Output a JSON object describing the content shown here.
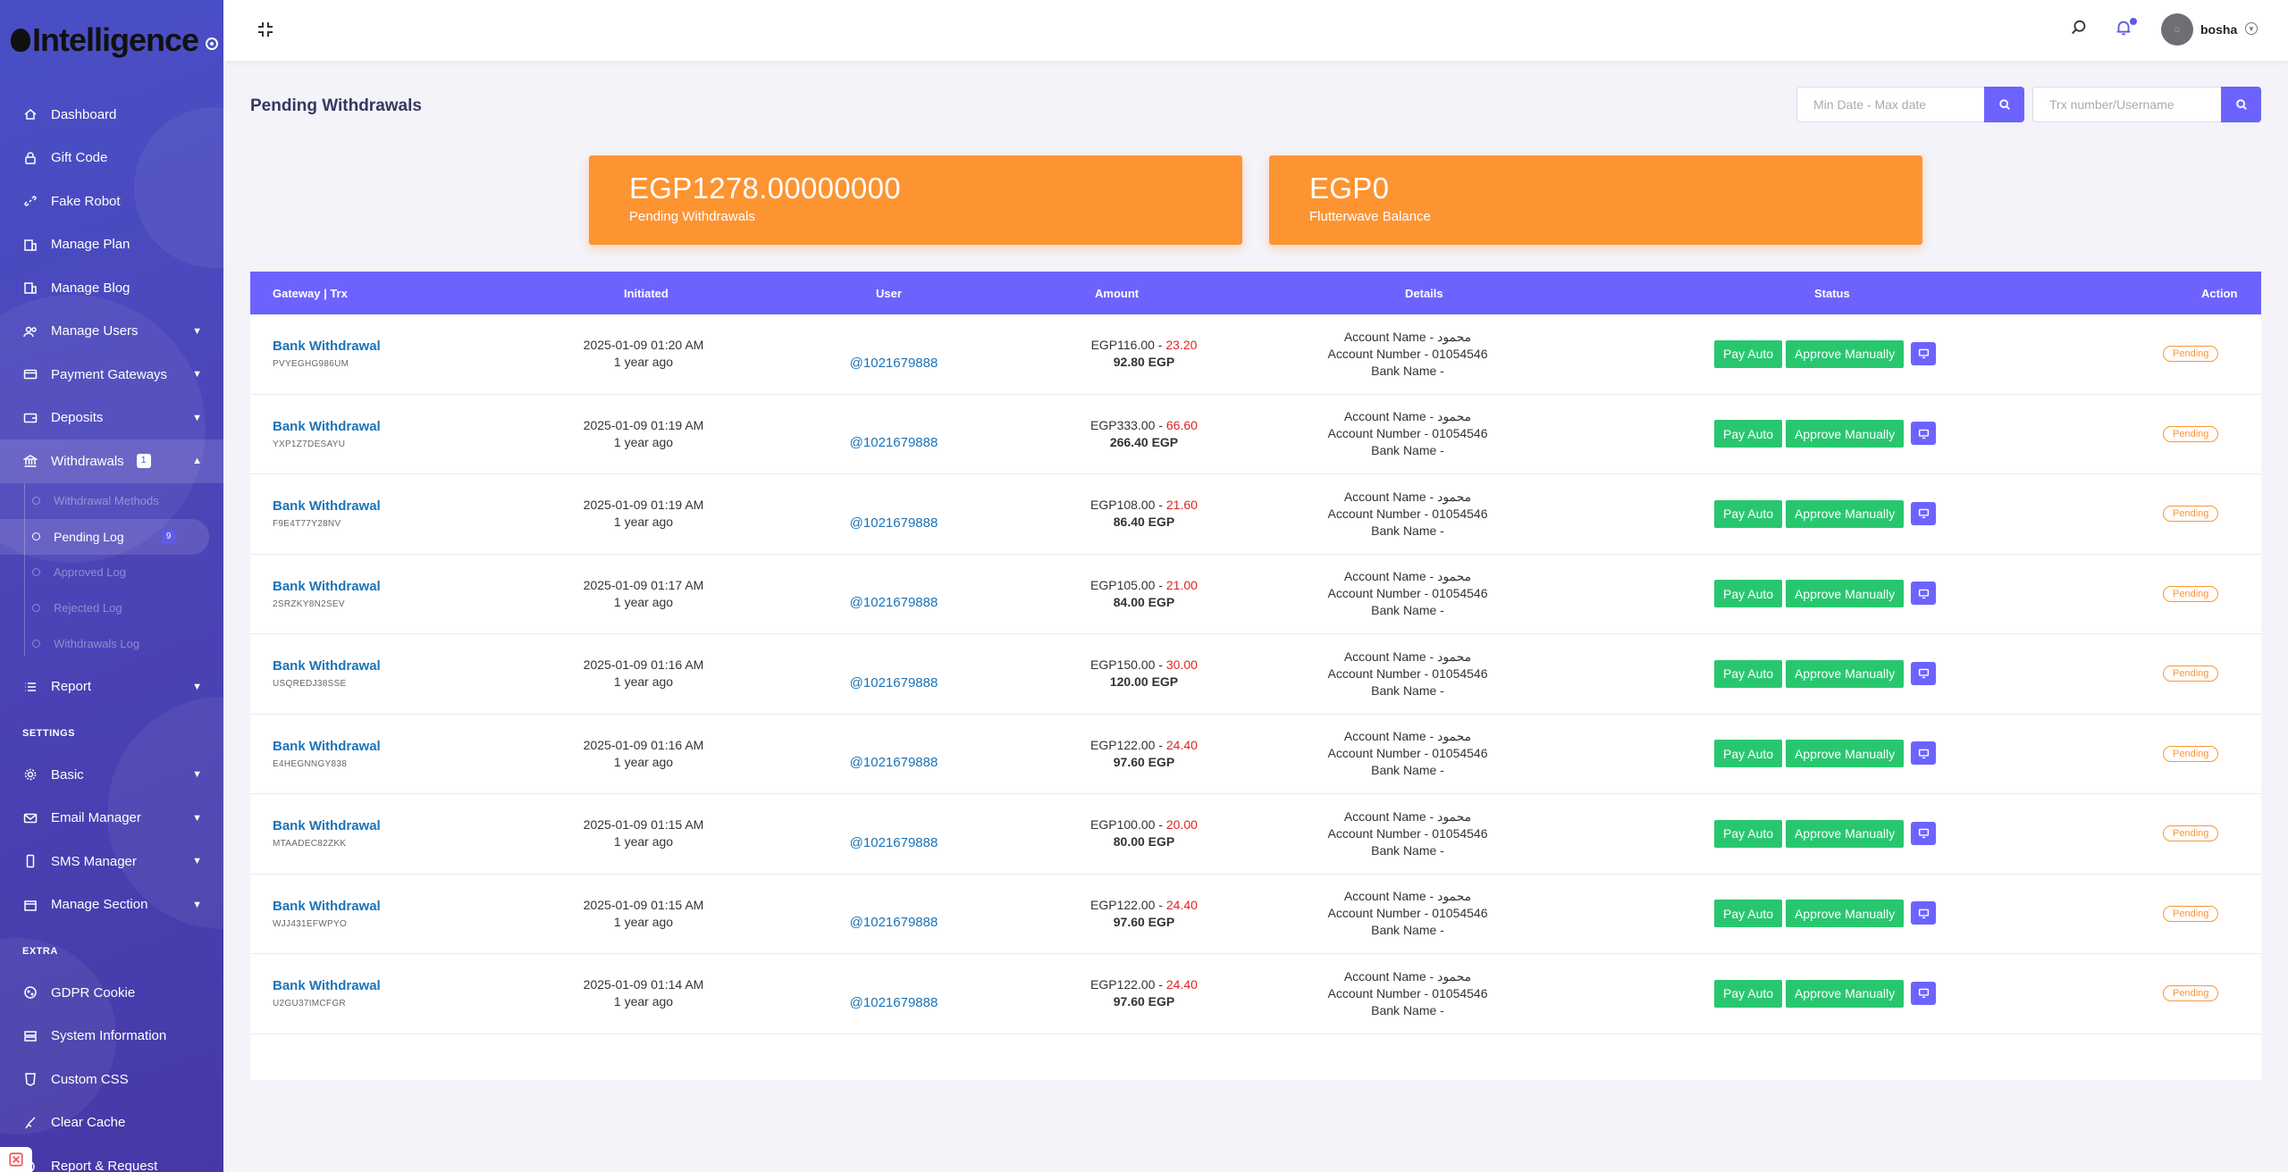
{
  "brand": {
    "name": "Intelligence"
  },
  "sidebar": {
    "items": [
      {
        "label": "Dashboard",
        "icon": "home-icon"
      },
      {
        "label": "Gift Code",
        "icon": "lock-icon"
      },
      {
        "label": "Fake Robot",
        "icon": "link-icon"
      },
      {
        "label": "Manage Plan",
        "icon": "building-icon"
      },
      {
        "label": "Manage Blog",
        "icon": "building-icon"
      },
      {
        "label": "Manage Users",
        "icon": "users-icon",
        "expandable": true
      },
      {
        "label": "Payment Gateways",
        "icon": "credit-card-icon",
        "expandable": true
      },
      {
        "label": "Deposits",
        "icon": "wallet-icon",
        "expandable": true
      },
      {
        "label": "Withdrawals",
        "icon": "bank-icon",
        "badge": "1",
        "expanded": true
      }
    ],
    "withdrawal_submenu": [
      {
        "label": "Withdrawal Methods"
      },
      {
        "label": "Pending Log",
        "badge": "9",
        "active": true
      },
      {
        "label": "Approved Log"
      },
      {
        "label": "Rejected Log"
      },
      {
        "label": "Withdrawals Log"
      }
    ],
    "report": {
      "label": "Report"
    },
    "settings_heading": "SETTINGS",
    "settings_items": [
      {
        "label": "Basic"
      },
      {
        "label": "Email Manager"
      },
      {
        "label": "SMS Manager"
      },
      {
        "label": "Manage Section"
      }
    ],
    "extra_heading": "EXTRA",
    "extra_items": [
      {
        "label": "GDPR Cookie"
      },
      {
        "label": "System Information"
      },
      {
        "label": "Custom CSS"
      },
      {
        "label": "Clear Cache"
      },
      {
        "label": "Report & Request"
      }
    ]
  },
  "topbar": {
    "username": "bosha"
  },
  "page": {
    "title": "Pending Withdrawals",
    "date_search_placeholder": "Min Date - Max date",
    "trx_search_placeholder": "Trx number/Username"
  },
  "cards": [
    {
      "amount": "EGP1278.00000000",
      "label": "Pending Withdrawals"
    },
    {
      "amount": "EGP0",
      "label": "Flutterwave Balance"
    }
  ],
  "table": {
    "headers": [
      "Gateway | Trx",
      "Initiated",
      "User",
      "Amount",
      "Details",
      "Status",
      "Action"
    ],
    "rows": [
      {
        "gateway": "Bank Withdrawal",
        "trx": "PVYEGHG986UM",
        "date": "2025-01-09 01:20 AM",
        "ago": "1 year ago",
        "user": "@1021679888",
        "amount": "EGP116.00",
        "charge": "23.20",
        "net": "92.80 EGP",
        "account_name": "Account Name - محمود",
        "account_number": "Account Number - 01054546",
        "bank_name": "Bank Name -",
        "status": "Pending"
      },
      {
        "gateway": "Bank Withdrawal",
        "trx": "YXP1Z7DESAYU",
        "date": "2025-01-09 01:19 AM",
        "ago": "1 year ago",
        "user": "@1021679888",
        "amount": "EGP333.00",
        "charge": "66.60",
        "net": "266.40 EGP",
        "account_name": "Account Name - محمود",
        "account_number": "Account Number - 01054546",
        "bank_name": "Bank Name -",
        "status": "Pending"
      },
      {
        "gateway": "Bank Withdrawal",
        "trx": "F9E4T77Y28NV",
        "date": "2025-01-09 01:19 AM",
        "ago": "1 year ago",
        "user": "@1021679888",
        "amount": "EGP108.00",
        "charge": "21.60",
        "net": "86.40 EGP",
        "account_name": "Account Name - محمود",
        "account_number": "Account Number - 01054546",
        "bank_name": "Bank Name -",
        "status": "Pending"
      },
      {
        "gateway": "Bank Withdrawal",
        "trx": "2SRZKY8N2SEV",
        "date": "2025-01-09 01:17 AM",
        "ago": "1 year ago",
        "user": "@1021679888",
        "amount": "EGP105.00",
        "charge": "21.00",
        "net": "84.00 EGP",
        "account_name": "Account Name - محمود",
        "account_number": "Account Number - 01054546",
        "bank_name": "Bank Name -",
        "status": "Pending"
      },
      {
        "gateway": "Bank Withdrawal",
        "trx": "USQREDJ38SSE",
        "date": "2025-01-09 01:16 AM",
        "ago": "1 year ago",
        "user": "@1021679888",
        "amount": "EGP150.00",
        "charge": "30.00",
        "net": "120.00 EGP",
        "account_name": "Account Name - محمود",
        "account_number": "Account Number - 01054546",
        "bank_name": "Bank Name -",
        "status": "Pending"
      },
      {
        "gateway": "Bank Withdrawal",
        "trx": "E4HEGNNGY838",
        "date": "2025-01-09 01:16 AM",
        "ago": "1 year ago",
        "user": "@1021679888",
        "amount": "EGP122.00",
        "charge": "24.40",
        "net": "97.60 EGP",
        "account_name": "Account Name - محمود",
        "account_number": "Account Number - 01054546",
        "bank_name": "Bank Name -",
        "status": "Pending"
      },
      {
        "gateway": "Bank Withdrawal",
        "trx": "MTAADEC82ZKK",
        "date": "2025-01-09 01:15 AM",
        "ago": "1 year ago",
        "user": "@1021679888",
        "amount": "EGP100.00",
        "charge": "20.00",
        "net": "80.00 EGP",
        "account_name": "Account Name - محمود",
        "account_number": "Account Number - 01054546",
        "bank_name": "Bank Name -",
        "status": "Pending"
      },
      {
        "gateway": "Bank Withdrawal",
        "trx": "WJJ431EFWPYO",
        "date": "2025-01-09 01:15 AM",
        "ago": "1 year ago",
        "user": "@1021679888",
        "amount": "EGP122.00",
        "charge": "24.40",
        "net": "97.60 EGP",
        "account_name": "Account Name - محمود",
        "account_number": "Account Number - 01054546",
        "bank_name": "Bank Name -",
        "status": "Pending"
      },
      {
        "gateway": "Bank Withdrawal",
        "trx": "U2GU37IMCFGR",
        "date": "2025-01-09 01:14 AM",
        "ago": "1 year ago",
        "user": "@1021679888",
        "amount": "EGP122.00",
        "charge": "24.40",
        "net": "97.60 EGP",
        "account_name": "Account Name - محمود",
        "account_number": "Account Number - 01054546",
        "bank_name": "Bank Name -",
        "status": "Pending"
      }
    ],
    "pay_auto_label": "Pay Auto",
    "approve_label": "Approve Manually"
  },
  "colors": {
    "accent": "#6c63ff",
    "card": "#fd9432",
    "success": "#28c76f",
    "sidebar": "#4b45b8"
  }
}
